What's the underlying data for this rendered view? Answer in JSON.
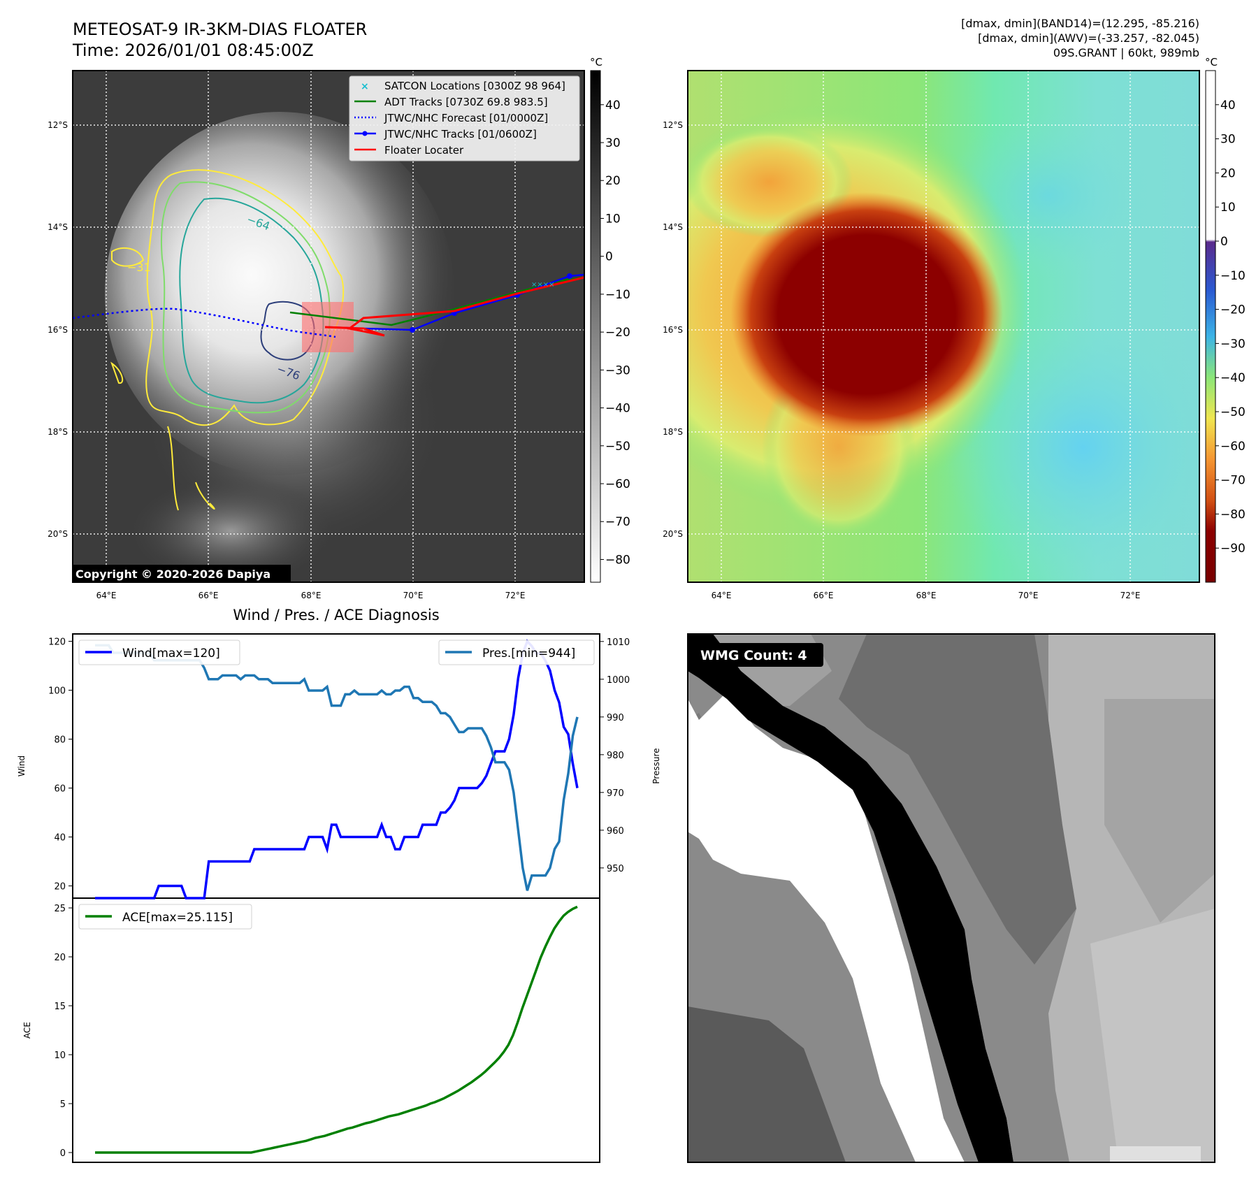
{
  "header": {
    "title_line1": "METEOSAT-9 IR-3KM-DIAS FLOATER",
    "title_line2": "Time: 2026/01/01 08:45:00Z",
    "band_stats": "[dmax, dmin](BAND14)=(12.295, -85.216)",
    "awv_stats": "[dmax, dmin](AWV)=(-33.257, -82.045)",
    "storm_info": "09S.GRANT | 60kt, 989mb"
  },
  "copyright": "Copyright © 2020-2026 Dapiya",
  "map_axes": {
    "lat_labels": [
      "12°S",
      "14°S",
      "16°S",
      "18°S",
      "20°S"
    ],
    "lon_labels": [
      "64°E",
      "66°E",
      "68°E",
      "70°E",
      "72°E"
    ],
    "colorbar_unit": "°C"
  },
  "gray_colorbar": {
    "ticks": [
      "40",
      "30",
      "20",
      "10",
      "0",
      "−10",
      "−20",
      "−30",
      "−40",
      "−50",
      "−60",
      "−70",
      "−80"
    ]
  },
  "color_colorbar": {
    "ticks": [
      "40",
      "30",
      "20",
      "10",
      "0",
      "−10",
      "−20",
      "−30",
      "−40",
      "−50",
      "−60",
      "−70",
      "−80",
      "−90"
    ],
    "colors": [
      "#ffffff",
      "#5a2a8c",
      "#2a5ad2",
      "#3cb4e6",
      "#8ce678",
      "#f0e650",
      "#f59632",
      "#d25014",
      "#8c0000",
      "#780000"
    ]
  },
  "contour_labels": [
    "−31",
    "−64",
    "−76"
  ],
  "legend": [
    {
      "label": "SATCON Locations [0300Z 98 964]",
      "color": "#17becf",
      "style": "x"
    },
    {
      "label": "ADT Tracks [0730Z 69.8 983.5]",
      "color": "#008000",
      "style": "line"
    },
    {
      "label": "JTWC/NHC Forecast [01/0000Z]",
      "color": "#0000ff",
      "style": "dotted"
    },
    {
      "label": "JTWC/NHC Tracks [01/0600Z]",
      "color": "#0000ff",
      "style": "line-dot"
    },
    {
      "label": "Floater Locater",
      "color": "#ff0000",
      "style": "line"
    }
  ],
  "diagnosis_title": "Wind / Pres. / ACE Diagnosis",
  "wmg_label": "WMG Count: 4",
  "chart_data": [
    {
      "type": "line",
      "title": "Wind / Pres. / ACE Diagnosis",
      "ylabel": "Wind",
      "ylim": [
        15,
        123
      ],
      "yticks": [
        20,
        40,
        60,
        80,
        100,
        120
      ],
      "series": [
        {
          "name": "Wind[max=120]",
          "color": "#0000ff",
          "values": [
            15,
            15,
            15,
            15,
            15,
            15,
            15,
            15,
            15,
            15,
            15,
            15,
            15,
            15,
            20,
            20,
            20,
            20,
            20,
            20,
            15,
            15,
            15,
            15,
            15,
            30,
            30,
            30,
            30,
            30,
            30,
            30,
            30,
            30,
            30,
            35,
            35,
            35,
            35,
            35,
            35,
            35,
            35,
            35,
            35,
            35,
            35,
            40,
            40,
            40,
            40,
            35,
            45,
            45,
            40,
            40,
            40,
            40,
            40,
            40,
            40,
            40,
            40,
            45,
            40,
            40,
            35,
            35,
            40,
            40,
            40,
            40,
            45,
            45,
            45,
            45,
            50,
            50,
            52,
            55,
            60,
            60,
            60,
            60,
            60,
            62,
            65,
            70,
            75,
            75,
            75,
            80,
            90,
            105,
            115,
            120,
            118,
            115,
            115,
            112,
            108,
            100,
            95,
            85,
            82,
            70,
            60
          ]
        }
      ]
    },
    {
      "type": "line",
      "ylabel": "Pressure",
      "ylim": [
        942,
        1012
      ],
      "yticks": [
        950,
        960,
        970,
        980,
        990,
        1000,
        1010
      ],
      "series": [
        {
          "name": "Pres.[min=944]",
          "color": "#1f77b4",
          "values": [
            1009,
            1009,
            1009,
            1009,
            1007,
            1007,
            1007,
            1007,
            1007,
            1007,
            1007,
            1007,
            1007,
            1005,
            1005,
            1005,
            1005,
            1005,
            1005,
            1005,
            1005,
            1005,
            1005,
            1005,
            1003,
            1000,
            1000,
            1000,
            1001,
            1001,
            1001,
            1001,
            1000,
            1001,
            1001,
            1001,
            1000,
            1000,
            1000,
            999,
            999,
            999,
            999,
            999,
            999,
            999,
            1000,
            997,
            997,
            997,
            997,
            998,
            993,
            993,
            993,
            996,
            996,
            997,
            996,
            996,
            996,
            996,
            996,
            997,
            996,
            996,
            997,
            997,
            998,
            998,
            995,
            995,
            994,
            994,
            994,
            993,
            991,
            991,
            990,
            988,
            986,
            986,
            987,
            987,
            987,
            987,
            985,
            982,
            978,
            978,
            978,
            976,
            970,
            960,
            950,
            944,
            948,
            948,
            948,
            948,
            950,
            955,
            957,
            968,
            975,
            985,
            990
          ]
        }
      ]
    },
    {
      "type": "line",
      "ylabel": "ACE",
      "ylim": [
        -1,
        26
      ],
      "yticks": [
        0,
        5,
        10,
        15,
        20,
        25
      ],
      "series": [
        {
          "name": "ACE[max=25.115]",
          "color": "#008000",
          "values": [
            0,
            0,
            0,
            0,
            0,
            0,
            0,
            0,
            0,
            0,
            0,
            0,
            0,
            0,
            0,
            0,
            0,
            0,
            0,
            0,
            0,
            0,
            0,
            0,
            0,
            0,
            0,
            0,
            0,
            0,
            0,
            0,
            0,
            0,
            0,
            0.1,
            0.2,
            0.3,
            0.4,
            0.5,
            0.6,
            0.7,
            0.8,
            0.9,
            1.0,
            1.1,
            1.2,
            1.35,
            1.5,
            1.6,
            1.7,
            1.85,
            2.0,
            2.15,
            2.3,
            2.45,
            2.55,
            2.7,
            2.85,
            3.0,
            3.1,
            3.25,
            3.4,
            3.55,
            3.7,
            3.8,
            3.9,
            4.05,
            4.2,
            4.35,
            4.5,
            4.65,
            4.8,
            5.0,
            5.15,
            5.35,
            5.55,
            5.8,
            6.05,
            6.3,
            6.6,
            6.9,
            7.2,
            7.55,
            7.9,
            8.3,
            8.75,
            9.2,
            9.7,
            10.3,
            11.0,
            12.0,
            13.3,
            14.7,
            16.0,
            17.3,
            18.6,
            19.9,
            21.0,
            22.0,
            22.9,
            23.6,
            24.2,
            24.6,
            24.9,
            25.115
          ]
        }
      ]
    }
  ]
}
